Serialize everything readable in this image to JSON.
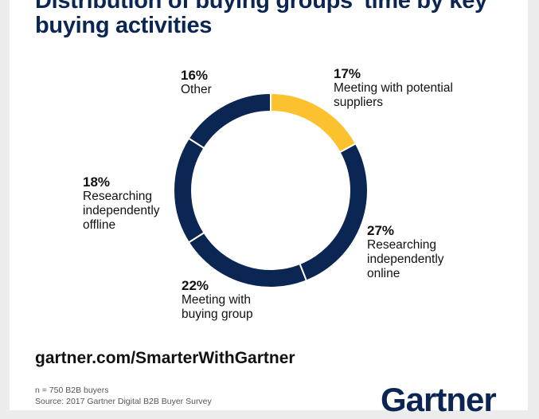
{
  "title": "Distribution of buying groups' time by key buying activities",
  "chart_data": {
    "type": "pie",
    "donut": true,
    "title": "Distribution of buying groups' time by key buying activities",
    "slices": [
      {
        "label": "Meeting with potential suppliers",
        "value": 17,
        "pct_label": "17%",
        "color": "#fcc12f"
      },
      {
        "label": "Researching independently online",
        "value": 27,
        "pct_label": "27%",
        "color": "#0b2653"
      },
      {
        "label": "Meeting with buying group",
        "value": 22,
        "pct_label": "22%",
        "color": "#0b2653"
      },
      {
        "label": "Researching independently offline",
        "value": 18,
        "pct_label": "18%",
        "color": "#0b2653"
      },
      {
        "label": "Other",
        "value": 16,
        "pct_label": "16%",
        "color": "#0b2653"
      }
    ]
  },
  "url": "gartner.com/SmarterWithGartner",
  "footnote": {
    "n": "n = 750 B2B buyers",
    "source": "Source: 2017 Gartner Digital B2B Buyer Survey"
  },
  "logo": "Gartner"
}
